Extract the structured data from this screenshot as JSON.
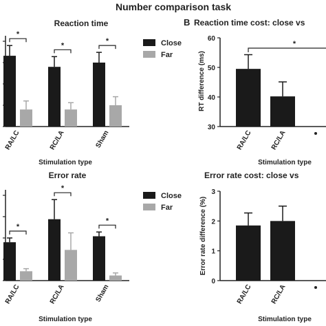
{
  "figure_title": "Number comparison task",
  "panel_b_label": "B",
  "colors": {
    "close": "#1a1a1a",
    "far": "#a8a8a8",
    "single": "#1a1a1a",
    "axis": "#222222"
  },
  "chart_data": [
    {
      "id": "rt",
      "type": "bar",
      "title": "Reaction time",
      "xlabel": "Stimulation type",
      "ylabel": "",
      "categories": [
        "RA/LC",
        "RC/LA",
        "Sham"
      ],
      "series": [
        {
          "name": "Close",
          "values": [
            0.83,
            0.7,
            0.75
          ],
          "errors": [
            0.12,
            0.12,
            0.12
          ]
        },
        {
          "name": "Far",
          "values": [
            0.2,
            0.2,
            0.25
          ],
          "errors": [
            0.1,
            0.08,
            0.1
          ]
        }
      ],
      "ylim": [
        0,
        1
      ],
      "significance": [
        "*",
        "*",
        "*"
      ],
      "legend_position": "right"
    },
    {
      "id": "err",
      "type": "bar",
      "title": "Error rate",
      "xlabel": "Stimulation type",
      "ylabel": "",
      "categories": [
        "RA/LC",
        "RC/LA",
        "Sham"
      ],
      "series": [
        {
          "name": "Close",
          "values": [
            0.45,
            0.72,
            0.52
          ],
          "errors": [
            0.05,
            0.23,
            0.05
          ]
        },
        {
          "name": "Far",
          "values": [
            0.11,
            0.36,
            0.06
          ],
          "errors": [
            0.03,
            0.2,
            0.03
          ]
        }
      ],
      "ylim": [
        0,
        1
      ],
      "significance": [
        "*",
        "*",
        "*"
      ],
      "legend_position": "right"
    },
    {
      "id": "rtcost",
      "type": "bar",
      "title": "Reaction time cost: close vs",
      "xlabel": "Stimulation type",
      "ylabel": "RT difference (ms)",
      "categories": [
        "RA/LC",
        "RC/LA"
      ],
      "series": [
        {
          "values": [
            49.5,
            40.2
          ],
          "errors": [
            4.8,
            4.9
          ]
        }
      ],
      "ylim": [
        30,
        60
      ],
      "yticks": [
        30,
        40,
        50,
        60
      ],
      "significance": [
        "*"
      ]
    },
    {
      "id": "errcost",
      "type": "bar",
      "title": "Error rate cost: close vs",
      "xlabel": "Stimulation type",
      "ylabel": "Error rate difference (%)",
      "categories": [
        "RA/LC",
        "RC/LA"
      ],
      "series": [
        {
          "values": [
            1.85,
            2.0
          ],
          "errors": [
            0.42,
            0.5
          ]
        }
      ],
      "ylim": [
        0,
        3
      ],
      "yticks": [
        0,
        1,
        2,
        3
      ]
    }
  ]
}
